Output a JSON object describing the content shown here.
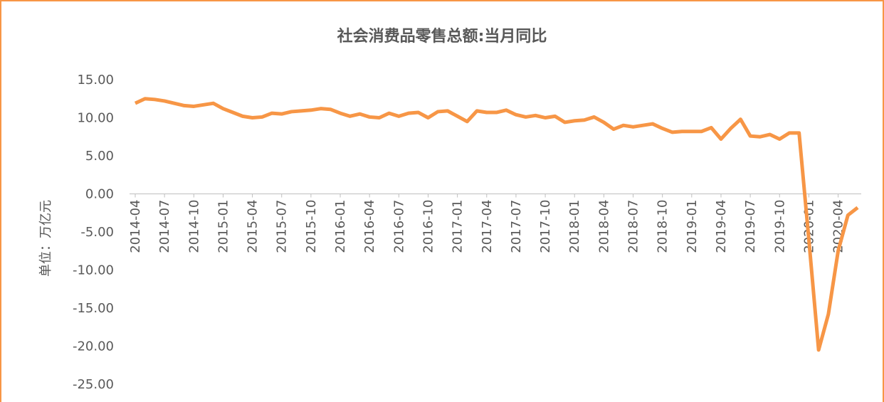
{
  "chart_data": {
    "type": "line",
    "title": "社会消费品零售总额:当月同比",
    "y_label": "单位：万亿元",
    "categories": [
      "2014-04",
      null,
      null,
      "2014-07",
      null,
      null,
      "2014-10",
      null,
      null,
      "2015-01",
      null,
      null,
      "2015-04",
      null,
      null,
      "2015-07",
      null,
      null,
      "2015-10",
      null,
      null,
      "2016-01",
      null,
      null,
      "2016-04",
      null,
      null,
      "2016-07",
      null,
      null,
      "2016-10",
      null,
      null,
      "2017-01",
      null,
      null,
      "2017-04",
      null,
      null,
      "2017-07",
      null,
      null,
      "2017-10",
      null,
      null,
      "2018-01",
      null,
      null,
      "2018-04",
      null,
      null,
      "2018-07",
      null,
      null,
      "2018-10",
      null,
      null,
      "2019-01",
      null,
      null,
      "2019-04",
      null,
      null,
      "2019-07",
      null,
      null,
      "2019-10",
      null,
      null,
      "2020-01",
      null,
      null,
      "2020-04",
      null,
      null
    ],
    "series": [
      {
        "name": "社会消费品零售总额:当月同比",
        "color": "#f79646",
        "values": [
          11.9,
          12.5,
          12.4,
          12.2,
          11.9,
          11.6,
          11.5,
          11.7,
          11.9,
          11.2,
          10.7,
          10.2,
          10.0,
          10.1,
          10.6,
          10.5,
          10.8,
          10.9,
          11.0,
          11.2,
          11.1,
          10.6,
          10.2,
          10.5,
          10.1,
          10.0,
          10.6,
          10.2,
          10.6,
          10.7,
          10.0,
          10.8,
          10.9,
          10.2,
          9.5,
          10.9,
          10.7,
          10.7,
          11.0,
          10.4,
          10.1,
          10.3,
          10.0,
          10.2,
          9.4,
          9.6,
          9.7,
          10.1,
          9.4,
          8.5,
          9.0,
          8.8,
          9.0,
          9.2,
          8.6,
          8.1,
          8.2,
          8.2,
          8.2,
          8.7,
          7.2,
          8.6,
          9.8,
          7.6,
          7.5,
          7.8,
          7.2,
          8.0,
          8.0,
          -6.0,
          -20.5,
          -15.8,
          -7.5,
          -2.8,
          -1.8
        ]
      }
    ],
    "ylim": [
      -25,
      15
    ],
    "yticks": [
      {
        "value": 15,
        "label": "15.00"
      },
      {
        "value": 10,
        "label": "10.00"
      },
      {
        "value": 5,
        "label": "5.00"
      },
      {
        "value": 0,
        "label": "0.00"
      },
      {
        "value": -5,
        "label": "-5.00"
      },
      {
        "value": -10,
        "label": "-10.00"
      },
      {
        "value": -15,
        "label": "-15.00"
      },
      {
        "value": -20,
        "label": "-20.00"
      },
      {
        "value": -25,
        "label": "-25.00"
      }
    ],
    "grid": false
  }
}
